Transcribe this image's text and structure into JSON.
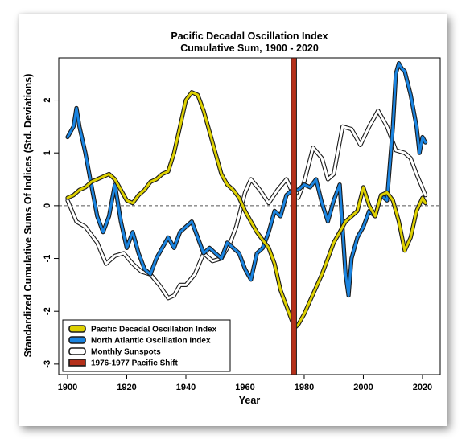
{
  "chart_data": {
    "type": "line",
    "title": "Pacific Decadal Oscillation Index",
    "subtitle": "Cumulative Sum, 1900 - 2020",
    "xlabel": "Year",
    "ylabel": "Standardized Cumulative Sums Of Indices (Std. Deviations)",
    "xlim": [
      1897,
      2026
    ],
    "ylim": [
      -3.2,
      2.8
    ],
    "x_ticks": [
      1900,
      1920,
      1940,
      1960,
      1980,
      2000,
      2020
    ],
    "y_ticks": [
      -3,
      -2,
      -1,
      0,
      1,
      2
    ],
    "grid": false,
    "zero_reference_line": 0,
    "legend_position": "bottom-left",
    "series": [
      {
        "name": "Pacific Decadal Oscillation Index",
        "color": "#ddd000",
        "x": [
          1900,
          1902,
          1904,
          1906,
          1908,
          1910,
          1912,
          1914,
          1916,
          1918,
          1920,
          1922,
          1924,
          1926,
          1928,
          1930,
          1932,
          1934,
          1936,
          1938,
          1940,
          1942,
          1944,
          1946,
          1948,
          1950,
          1952,
          1954,
          1956,
          1958,
          1960,
          1962,
          1964,
          1966,
          1968,
          1970,
          1972,
          1974,
          1976,
          1977,
          1978,
          1980,
          1982,
          1984,
          1986,
          1988,
          1990,
          1992,
          1994,
          1996,
          1998,
          2000,
          2002,
          2004,
          2006,
          2008,
          2010,
          2012,
          2014,
          2016,
          2018,
          2020,
          2021
        ],
        "values": [
          0.15,
          0.2,
          0.3,
          0.35,
          0.45,
          0.5,
          0.55,
          0.6,
          0.5,
          0.3,
          0.1,
          0.05,
          0.2,
          0.3,
          0.45,
          0.5,
          0.6,
          0.65,
          1.0,
          1.5,
          2.0,
          2.15,
          2.1,
          1.8,
          1.4,
          1.0,
          0.6,
          0.4,
          0.3,
          0.15,
          -0.1,
          -0.3,
          -0.5,
          -0.65,
          -0.8,
          -1.1,
          -1.6,
          -1.9,
          -2.2,
          -2.3,
          -2.25,
          -2.05,
          -1.8,
          -1.55,
          -1.3,
          -1.0,
          -0.7,
          -0.5,
          -0.3,
          -0.2,
          -0.1,
          0.35,
          0.0,
          -0.2,
          0.2,
          0.25,
          0.1,
          -0.3,
          -0.85,
          -0.6,
          -0.1,
          0.15,
          0.05
        ]
      },
      {
        "name": "North Atlantic Oscillation Index",
        "color": "#1a84e0",
        "x": [
          1900,
          1902,
          1903,
          1904,
          1906,
          1908,
          1910,
          1912,
          1914,
          1916,
          1918,
          1920,
          1922,
          1924,
          1926,
          1928,
          1930,
          1932,
          1934,
          1936,
          1938,
          1940,
          1942,
          1944,
          1946,
          1948,
          1950,
          1952,
          1954,
          1956,
          1958,
          1960,
          1962,
          1964,
          1966,
          1968,
          1970,
          1972,
          1974,
          1976,
          1978,
          1980,
          1982,
          1984,
          1986,
          1988,
          1990,
          1992,
          1994,
          1995,
          1996,
          1998,
          2000,
          2002,
          2004,
          2006,
          2008,
          2010,
          2011,
          2012,
          2013,
          2014,
          2016,
          2018,
          2019,
          2020,
          2021
        ],
        "values": [
          1.3,
          1.5,
          1.85,
          1.5,
          1.0,
          0.4,
          -0.2,
          -0.5,
          -0.2,
          0.4,
          -0.3,
          -0.8,
          -0.5,
          -0.9,
          -1.2,
          -1.3,
          -1.0,
          -0.8,
          -0.6,
          -0.8,
          -0.5,
          -0.4,
          -0.3,
          -0.6,
          -0.9,
          -0.8,
          -0.9,
          -1.0,
          -0.7,
          -0.8,
          -0.9,
          -1.2,
          -1.4,
          -0.9,
          -0.8,
          -0.5,
          -0.1,
          -0.2,
          0.2,
          0.3,
          0.3,
          0.4,
          0.35,
          0.5,
          0.05,
          -0.3,
          0.1,
          0.4,
          -1.3,
          -1.7,
          -1.0,
          -0.6,
          -0.4,
          -0.1,
          -0.2,
          0.2,
          0.1,
          1.5,
          2.5,
          2.7,
          2.6,
          2.55,
          2.1,
          1.5,
          1.0,
          1.3,
          1.2
        ]
      },
      {
        "name": "Monthly Sunspots",
        "color": "#ffffff",
        "x": [
          1900,
          1903,
          1906,
          1910,
          1913,
          1916,
          1919,
          1922,
          1925,
          1928,
          1931,
          1934,
          1936,
          1938,
          1940,
          1943,
          1946,
          1949,
          1952,
          1955,
          1957,
          1960,
          1962,
          1965,
          1968,
          1971,
          1974,
          1976,
          1978,
          1980,
          1983,
          1986,
          1988,
          1990,
          1993,
          1996,
          1999,
          2002,
          2005,
          2008,
          2011,
          2014,
          2016,
          2018,
          2021
        ],
        "values": [
          0.1,
          -0.3,
          -0.4,
          -0.7,
          -1.1,
          -0.95,
          -0.9,
          -1.1,
          -1.25,
          -1.3,
          -1.5,
          -1.75,
          -1.7,
          -1.5,
          -1.5,
          -1.3,
          -0.9,
          -1.05,
          -1.0,
          -0.7,
          -0.4,
          0.25,
          0.5,
          0.3,
          0.05,
          0.3,
          0.5,
          0.25,
          0.15,
          0.45,
          1.1,
          0.9,
          0.5,
          0.6,
          1.5,
          1.45,
          1.15,
          1.5,
          1.8,
          1.5,
          1.05,
          1.0,
          0.9,
          0.6,
          0.2
        ]
      }
    ],
    "markers": [
      {
        "name": "1976-1977 Pacific Shift",
        "color": "#b5301a",
        "x": 1976.5
      }
    ],
    "legend": [
      {
        "label": "Pacific Decadal Oscillation Index",
        "color": "#ddd000"
      },
      {
        "label": "North Atlantic Oscillation Index",
        "color": "#1a84e0"
      },
      {
        "label": "Monthly Sunspots",
        "color": "#ffffff"
      },
      {
        "label": "1976-1977 Pacific Shift",
        "color": "#b5301a"
      }
    ]
  }
}
